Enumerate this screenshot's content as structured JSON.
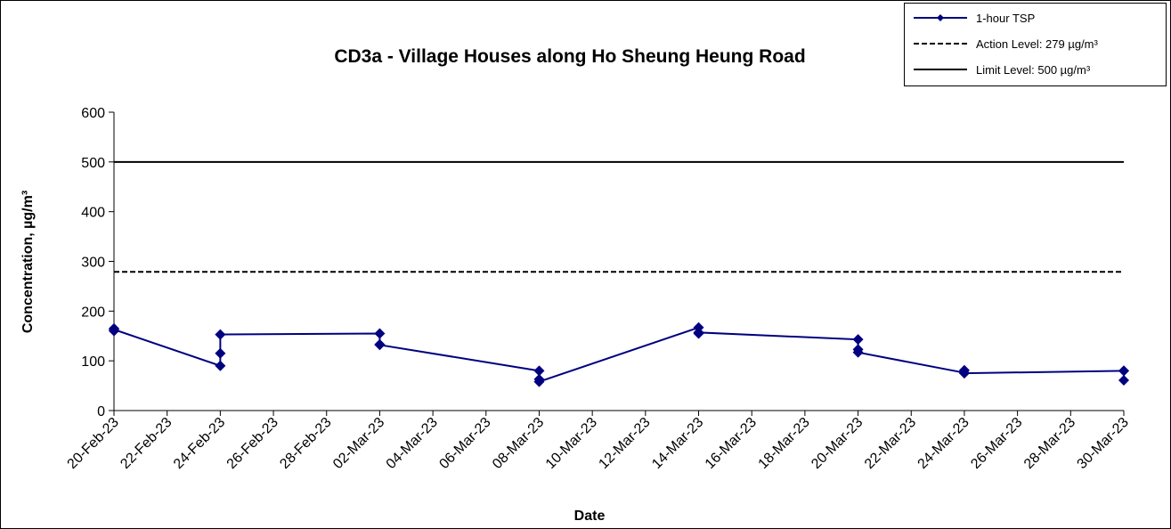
{
  "chart_data": {
    "type": "line",
    "title": "CD3a - Village Houses along Ho Sheung Heung Road",
    "x_label": "Date",
    "y_label": "Concentration, µg/m³",
    "x": [
      "2023-02-20",
      "2023-02-20",
      "2023-02-20",
      "2023-02-24",
      "2023-02-24",
      "2023-02-24",
      "2023-03-02",
      "2023-03-02",
      "2023-03-02",
      "2023-03-08",
      "2023-03-08",
      "2023-03-08",
      "2023-03-14",
      "2023-03-14",
      "2023-03-14",
      "2023-03-20",
      "2023-03-20",
      "2023-03-20",
      "2023-03-24",
      "2023-03-24",
      "2023-03-24",
      "2023-03-30",
      "2023-03-30",
      "2023-03-30"
    ],
    "series": [
      {
        "name": "1-hour TSP",
        "color": "#000080",
        "values": [
          160,
          165,
          163,
          90,
          115,
          153,
          155,
          133,
          132,
          80,
          63,
          58,
          167,
          155,
          157,
          143,
          123,
          117,
          76,
          81,
          75,
          80,
          80,
          61
        ]
      }
    ],
    "reference_lines": [
      {
        "name": "Action Level: 279 µg/m³",
        "value": 279,
        "color": "#000000",
        "dashed": true
      },
      {
        "name": "Limit Level: 500 µg/m³",
        "value": 500,
        "color": "#000000",
        "dashed": false
      }
    ],
    "xlim": [
      "2023-02-20",
      "2023-03-30"
    ],
    "xticks": [
      {
        "value": "2023-02-20",
        "label": "20-Feb-23"
      },
      {
        "value": "2023-02-22",
        "label": "22-Feb-23"
      },
      {
        "value": "2023-02-24",
        "label": "24-Feb-23"
      },
      {
        "value": "2023-02-26",
        "label": "26-Feb-23"
      },
      {
        "value": "2023-02-28",
        "label": "28-Feb-23"
      },
      {
        "value": "2023-03-02",
        "label": "02-Mar-23"
      },
      {
        "value": "2023-03-04",
        "label": "04-Mar-23"
      },
      {
        "value": "2023-03-06",
        "label": "06-Mar-23"
      },
      {
        "value": "2023-03-08",
        "label": "08-Mar-23"
      },
      {
        "value": "2023-03-10",
        "label": "10-Mar-23"
      },
      {
        "value": "2023-03-12",
        "label": "12-Mar-23"
      },
      {
        "value": "2023-03-14",
        "label": "14-Mar-23"
      },
      {
        "value": "2023-03-16",
        "label": "16-Mar-23"
      },
      {
        "value": "2023-03-18",
        "label": "18-Mar-23"
      },
      {
        "value": "2023-03-20",
        "label": "20-Mar-23"
      },
      {
        "value": "2023-03-22",
        "label": "22-Mar-23"
      },
      {
        "value": "2023-03-24",
        "label": "24-Mar-23"
      },
      {
        "value": "2023-03-26",
        "label": "26-Mar-23"
      },
      {
        "value": "2023-03-28",
        "label": "28-Mar-23"
      },
      {
        "value": "2023-03-30",
        "label": "30-Mar-23"
      }
    ],
    "ylim": [
      0,
      600
    ],
    "yticks": [
      0,
      100,
      200,
      300,
      400,
      500,
      600
    ],
    "grid": false,
    "legend": "top-right"
  }
}
